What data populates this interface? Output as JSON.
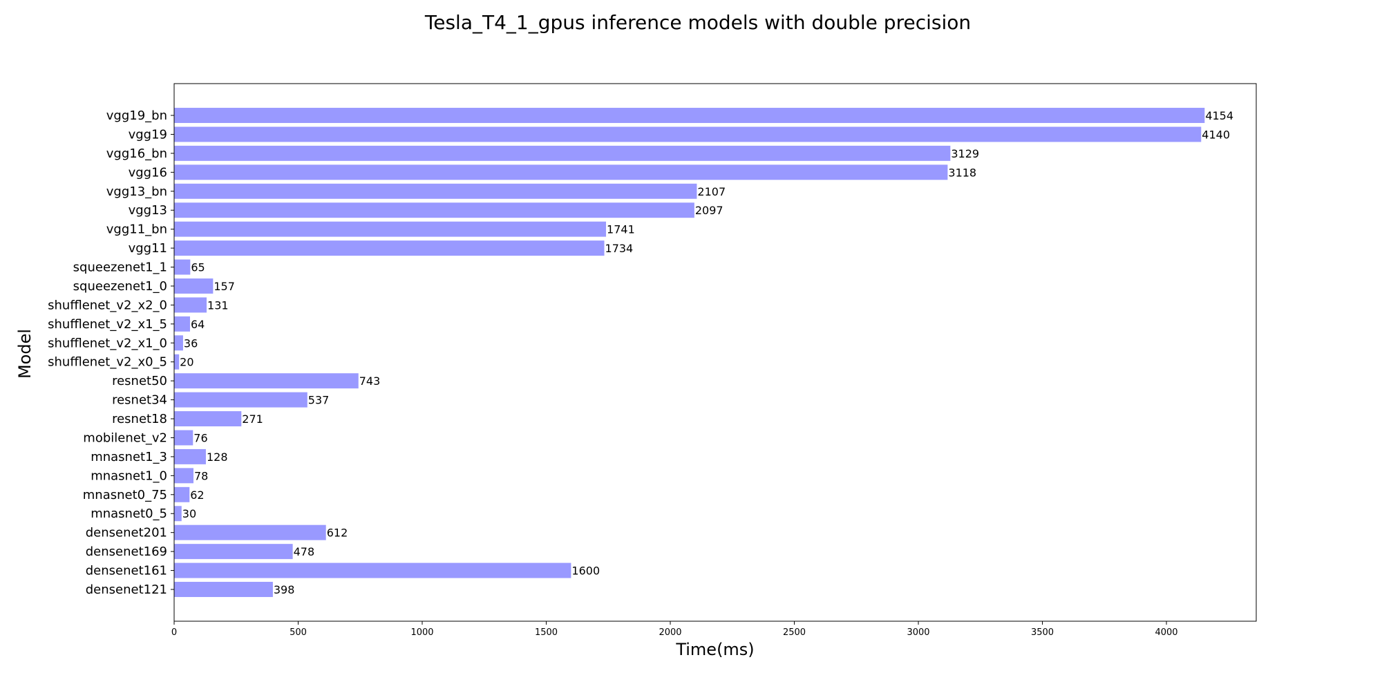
{
  "chart_data": {
    "type": "bar",
    "orientation": "horizontal",
    "title": "Tesla_T4_1_gpus inference models with double precision",
    "xlabel": "Time(ms)",
    "ylabel": "Model",
    "categories": [
      "densenet121",
      "densenet161",
      "densenet169",
      "densenet201",
      "mnasnet0_5",
      "mnasnet0_75",
      "mnasnet1_0",
      "mnasnet1_3",
      "mobilenet_v2",
      "resnet18",
      "resnet34",
      "resnet50",
      "shufflenet_v2_x0_5",
      "shufflenet_v2_x1_0",
      "shufflenet_v2_x1_5",
      "shufflenet_v2_x2_0",
      "squeezenet1_0",
      "squeezenet1_1",
      "vgg11",
      "vgg11_bn",
      "vgg13",
      "vgg13_bn",
      "vgg16",
      "vgg16_bn",
      "vgg19",
      "vgg19_bn"
    ],
    "values": [
      398,
      1600,
      478,
      612,
      30,
      62,
      78,
      128,
      76,
      271,
      537,
      743,
      20,
      36,
      64,
      131,
      157,
      65,
      1734,
      1741,
      2097,
      2107,
      3118,
      3129,
      4140,
      4154
    ],
    "data_labels": [
      "398",
      "1600",
      "478",
      "612",
      "30",
      "62",
      "78",
      "128",
      "76",
      "271",
      "537",
      "743",
      "20",
      "36",
      "64",
      "131",
      "157",
      "65",
      "1734",
      "1741",
      "2097",
      "2107",
      "3118",
      "3129",
      "4140",
      "4154"
    ],
    "xlim": [
      0,
      4362
    ],
    "xticks": [
      0,
      500,
      1000,
      1500,
      2000,
      2500,
      3000,
      3500,
      4000
    ],
    "xtick_labels": [
      "0",
      "500",
      "1000",
      "1500",
      "2000",
      "2500",
      "3000",
      "3500",
      "4000"
    ],
    "grid": false,
    "legend": "none",
    "bar_color": "#9999ff"
  }
}
